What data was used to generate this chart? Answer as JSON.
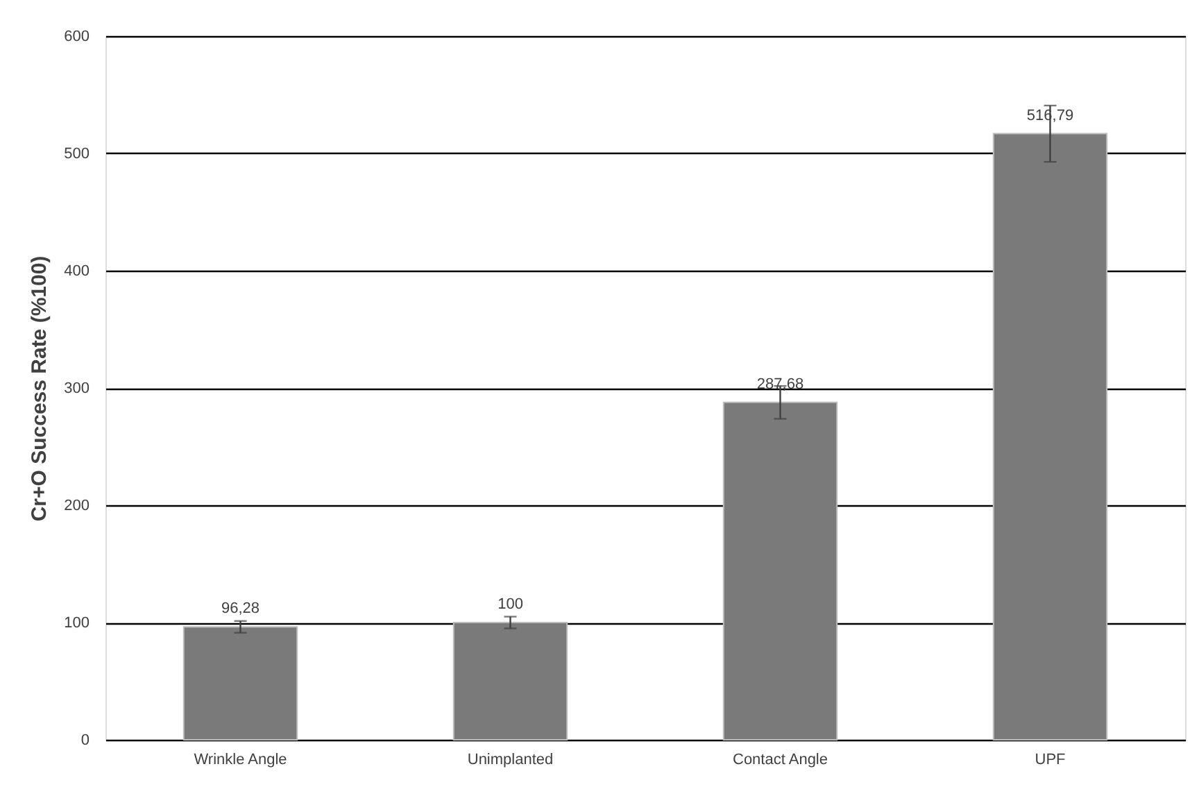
{
  "chart_data": {
    "type": "bar",
    "ylabel": "Cr+O Success Rate (%100)",
    "categories": [
      "Wrinkle Angle",
      "Unimplanted",
      "Contact Angle",
      "UPF"
    ],
    "values": [
      96.28,
      100,
      287.68,
      516.79
    ],
    "value_labels": [
      "96,28",
      "100",
      "287,68",
      "516,79"
    ],
    "errors": [
      5,
      5,
      14,
      24
    ],
    "color": "#7a7a7a",
    "ylim": [
      0,
      600
    ],
    "yticks": [
      0,
      100,
      200,
      300,
      400,
      500,
      600
    ],
    "grid": "y"
  }
}
